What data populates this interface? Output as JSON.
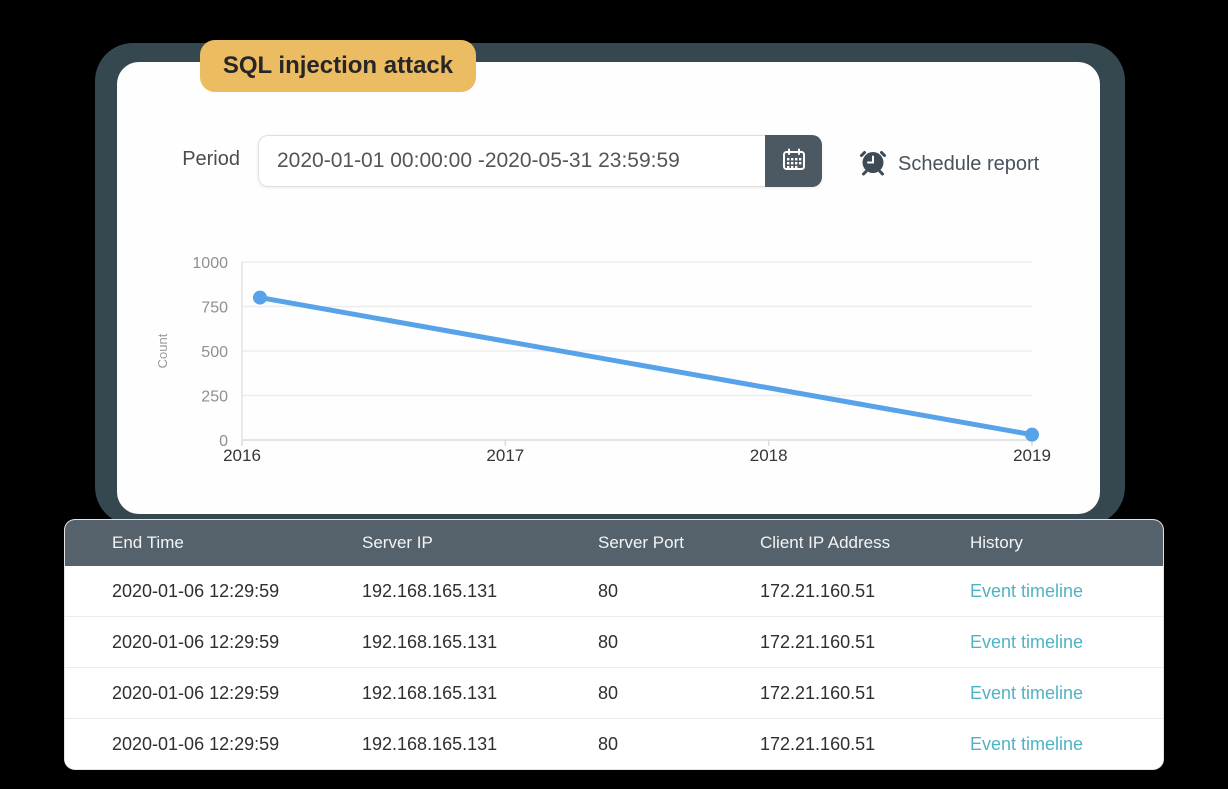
{
  "badge": {
    "label": "SQL injection attack",
    "bg": "#ecbc62"
  },
  "filters": {
    "period_label": "Period",
    "period_value": "2020-01-01 00:00:00 -2020-05-31 23:59:59",
    "schedule_label": "Schedule report",
    "calendar_icon": "calendar-icon",
    "alarm_icon": "alarm-clock-icon"
  },
  "chart_data": {
    "type": "line",
    "title": "",
    "xlabel": "",
    "ylabel": "Count",
    "x": [
      2016,
      2019
    ],
    "values": [
      800,
      30
    ],
    "x_ticks": [
      "2016",
      "2017",
      "2018",
      "2019"
    ],
    "y_ticks": [
      0,
      250,
      500,
      750,
      1000
    ],
    "xlim": [
      2016,
      2019
    ],
    "ylim": [
      0,
      1000
    ],
    "grid": true,
    "legend": false,
    "line_color": "#57a2e9",
    "marker": "circle"
  },
  "table": {
    "columns": [
      "End Time",
      "Server IP",
      "Server Port",
      "Client IP Address",
      "History"
    ],
    "rows": [
      [
        "2020-01-06 12:29:59",
        "192.168.165.131",
        "80",
        "172.21.160.51",
        "Event timeline"
      ],
      [
        "2020-01-06 12:29:59",
        "192.168.165.131",
        "80",
        "172.21.160.51",
        "Event timeline"
      ],
      [
        "2020-01-06 12:29:59",
        "192.168.165.131",
        "80",
        "172.21.160.51",
        "Event timeline"
      ],
      [
        "2020-01-06 12:29:59",
        "192.168.165.131",
        "80",
        "172.21.160.51",
        "Event timeline"
      ]
    ]
  },
  "colors": {
    "frame": "#35474f",
    "card": "#fefefe",
    "accent_amber": "#ecbc62",
    "line_blue": "#57a2e9",
    "link_teal": "#4fb3c6",
    "table_header": "#56626b",
    "calendar_button": "#4c5862"
  }
}
